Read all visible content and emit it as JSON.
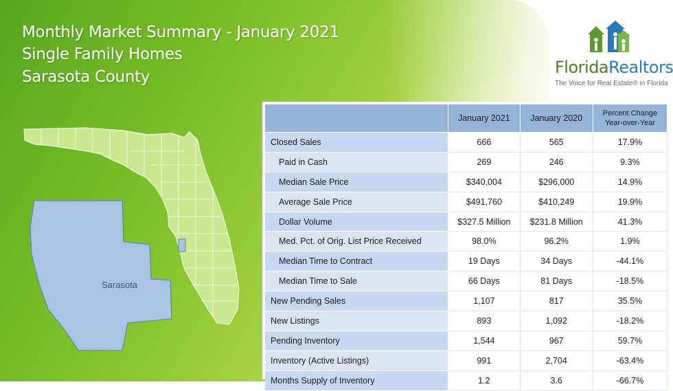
{
  "header": {
    "title_line1": "Monthly Market Summary - January 2021",
    "title_line2": "Single Family Homes",
    "title_line3": "Sarasota County"
  },
  "logo": {
    "name_part1": "Florida",
    "name_part2": "Realtors",
    "registered": "®",
    "tagline": "The Voice for Real Estate® in Florida"
  },
  "map": {
    "county_label": "Sarasota",
    "county_color": "#a9c4e3",
    "state_color": "#c9e88f"
  },
  "table": {
    "columns": [
      "",
      "January 2021",
      "January 2020",
      "Percent Change Year-over-Year"
    ],
    "rows": [
      {
        "label": "Closed Sales",
        "jan2021": "666",
        "jan2020": "565",
        "change": "17.9%"
      },
      {
        "label": "Paid in Cash",
        "jan2021": "269",
        "jan2020": "246",
        "change": "9.3%"
      },
      {
        "label": "Median Sale Price",
        "jan2021": "$340,004",
        "jan2020": "$296,000",
        "change": "14.9%"
      },
      {
        "label": "Average Sale Price",
        "jan2021": "$491,760",
        "jan2020": "$410,249",
        "change": "19.9%"
      },
      {
        "label": "Dollar Volume",
        "jan2021": "$327.5 Million",
        "jan2020": "$231.8 Million",
        "change": "41.3%"
      },
      {
        "label": "Med. Pct. of Orig. List Price Received",
        "jan2021": "98.0%",
        "jan2020": "96.2%",
        "change": "1.9%"
      },
      {
        "label": "Median Time to Contract",
        "jan2021": "19 Days",
        "jan2020": "34 Days",
        "change": "-44.1%"
      },
      {
        "label": "Median Time to Sale",
        "jan2021": "66 Days",
        "jan2020": "81 Days",
        "change": "-18.5%"
      },
      {
        "label": "New Pending Sales",
        "jan2021": "1,107",
        "jan2020": "817",
        "change": "35.5%"
      },
      {
        "label": "New Listings",
        "jan2021": "893",
        "jan2020": "1,092",
        "change": "-18.2%"
      },
      {
        "label": "Pending Inventory",
        "jan2021": "1,544",
        "jan2020": "967",
        "change": "59.7%"
      },
      {
        "label": "Inventory (Active Listings)",
        "jan2021": "991",
        "jan2020": "2,704",
        "change": "-63.4%"
      },
      {
        "label": "Months Supply of Inventory",
        "jan2021": "1.2",
        "jan2020": "3.6",
        "change": "-66.7%"
      }
    ]
  }
}
